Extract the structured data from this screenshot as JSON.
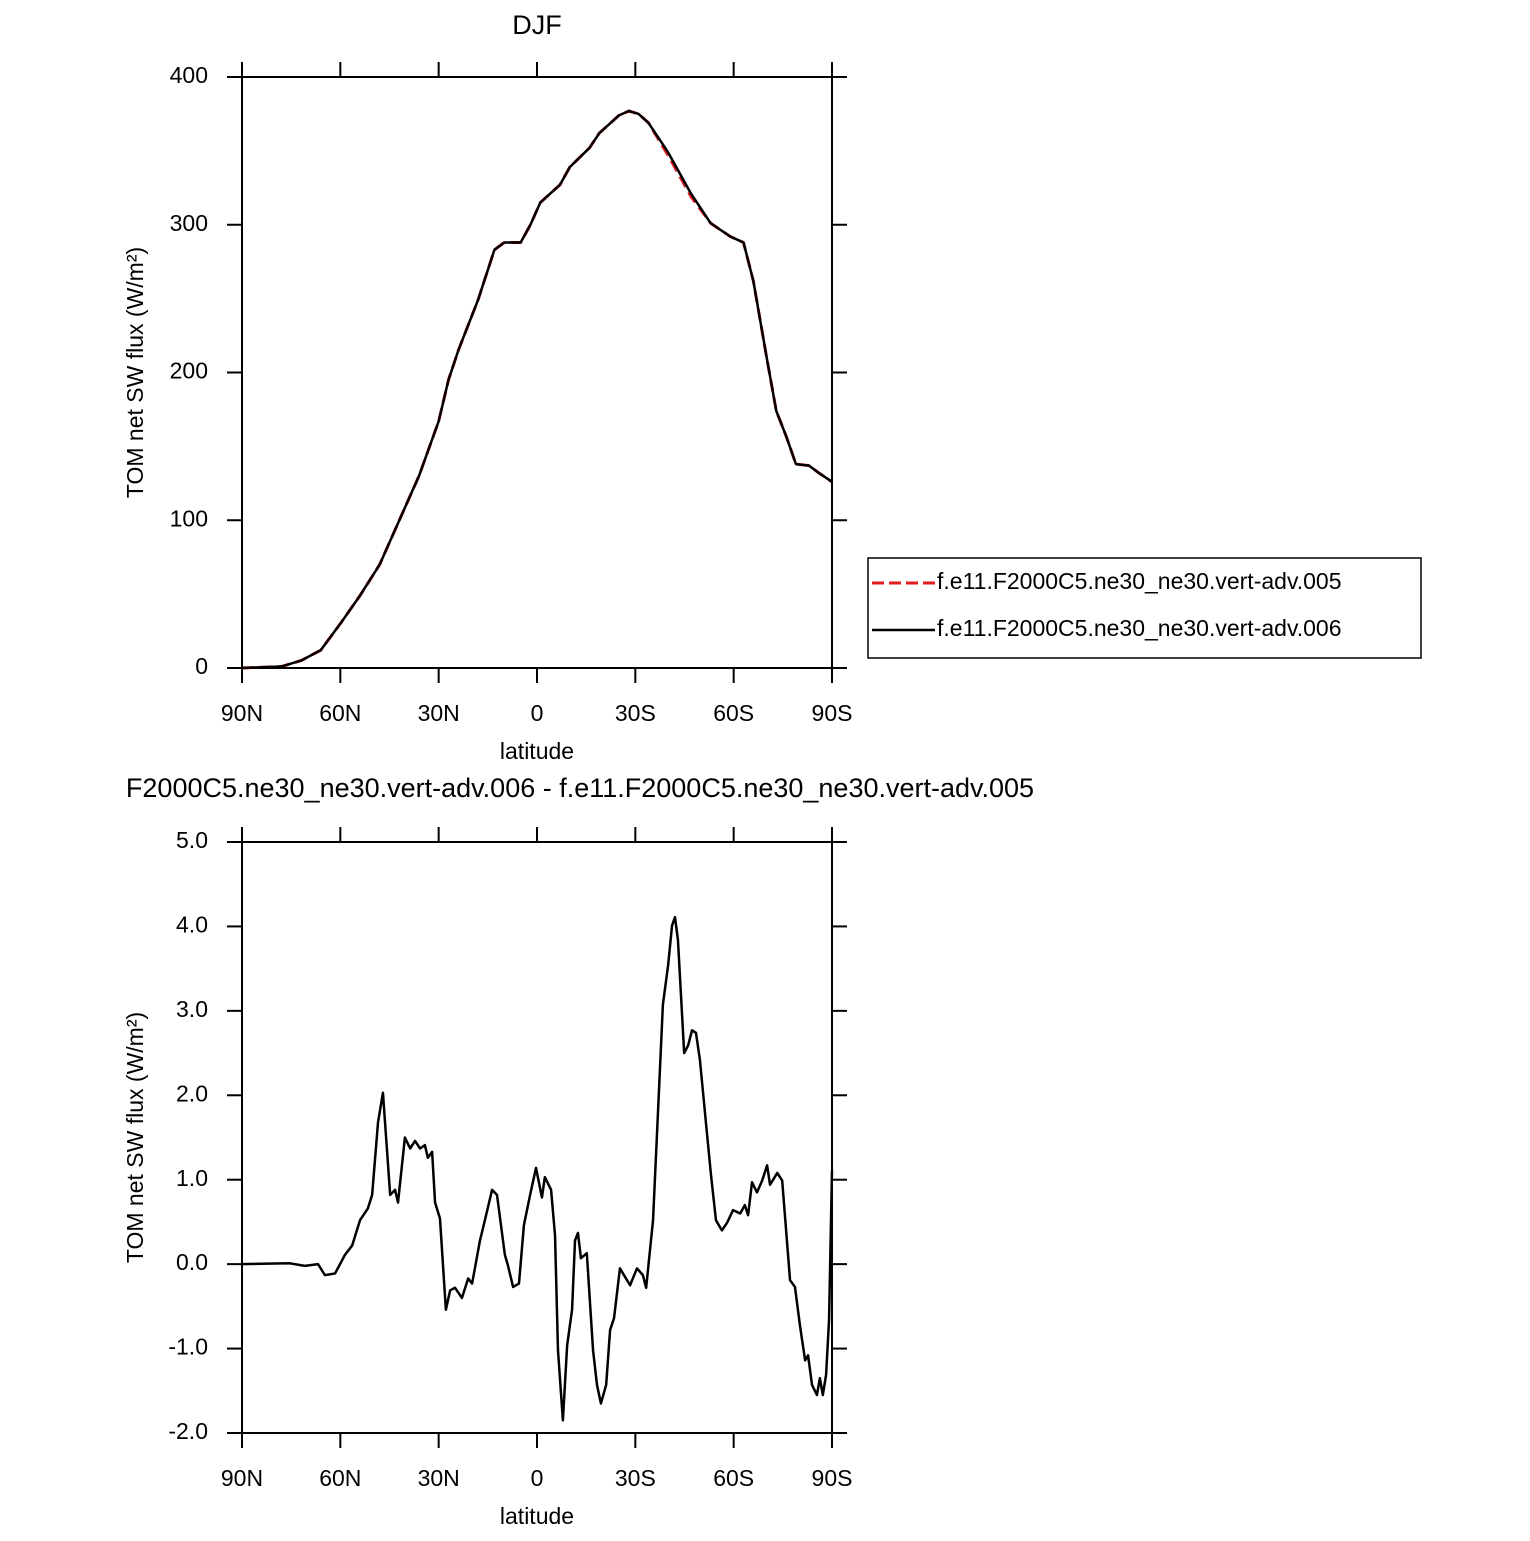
{
  "chart_data": [
    {
      "type": "line",
      "title": "DJF",
      "xlabel": "latitude",
      "ylabel": "TOM net SW flux (W/m²)",
      "x": [
        90,
        78,
        72,
        66,
        60,
        54,
        48,
        42,
        36,
        30,
        27,
        24,
        18,
        13,
        10,
        5,
        2,
        -1,
        -7,
        -10,
        -16,
        -19,
        -25,
        -28,
        -31,
        -34,
        -40,
        -47,
        -53,
        -59,
        -63,
        -66,
        -70,
        -73,
        -76,
        -79,
        -83,
        -86,
        -90
      ],
      "series": [
        {
          "name": "f.e11.F2000C5.ne30_ne30.vert-adv.005",
          "color": "#e41a1c",
          "linestyle": "dashed",
          "values": [
            0,
            1,
            5,
            12,
            30,
            49,
            70,
            100,
            130,
            167,
            195,
            215,
            249,
            283,
            288,
            288,
            300,
            315,
            327,
            339,
            352,
            362,
            374,
            377,
            375,
            369,
            347,
            319,
            301,
            292,
            288,
            262,
            211,
            174,
            157,
            138,
            137,
            132,
            126
          ]
        },
        {
          "name": "f.e11.F2000C5.ne30_ne30.vert-adv.006",
          "color": "#000000",
          "linestyle": "solid",
          "values": [
            0,
            1,
            5,
            12,
            30,
            49,
            70,
            100,
            130,
            167,
            195,
            215,
            249,
            283,
            288,
            288,
            300,
            315,
            327,
            339,
            352,
            362,
            374,
            377,
            375,
            369,
            349,
            321,
            301,
            292,
            288,
            262,
            211,
            174,
            157,
            138,
            137,
            132,
            126
          ]
        }
      ],
      "xlim": [
        90,
        -90
      ],
      "xticks": [
        {
          "value": 90,
          "label": "90N"
        },
        {
          "value": 60,
          "label": "60N"
        },
        {
          "value": 30,
          "label": "30N"
        },
        0,
        {
          "value": -30,
          "label": "30S"
        },
        {
          "value": -60,
          "label": "60S"
        },
        {
          "value": -90,
          "label": "90S"
        }
      ],
      "ylim": [
        0,
        400
      ],
      "yticks": [
        0,
        100,
        200,
        300,
        400
      ],
      "legend": "outside-right"
    },
    {
      "type": "line",
      "title": "F2000C5.ne30_ne30.vert-adv.006 - f.e11.F2000C5.ne30_ne30.vert-adv.005",
      "xlabel": "latitude",
      "ylabel": "TOM net SW flux (W/m²)",
      "x": [
        90,
        75.4,
        70.8,
        66.8,
        64.7,
        61.6,
        58.6,
        56.4,
        54,
        51.6,
        50.3,
        48.5,
        47,
        44.8,
        43.3,
        42.4,
        40.3,
        38.7,
        37.2,
        35.7,
        34.2,
        33.3,
        32,
        31.1,
        29.6,
        27.8,
        26.5,
        25,
        22.9,
        21,
        19.8,
        17.4,
        15.9,
        13.7,
        12.2,
        9.8,
        8.9,
        7.3,
        5.5,
        4,
        2.1,
        0.3,
        -1.5,
        -2.4,
        -4.3,
        -5.5,
        -6.4,
        -7.9,
        -9.2,
        -10.7,
        -11.6,
        -12.5,
        -13.4,
        -15.2,
        -17.1,
        -18.3,
        -19.5,
        -21.1,
        -22.3,
        -23.5,
        -25.3,
        -28.4,
        -30.5,
        -32.3,
        -33.3,
        -35.4,
        -37.5,
        -38.4,
        -40,
        -41.2,
        -42.1,
        -43,
        -44.9,
        -46.1,
        -47.3,
        -48.5,
        -49.7,
        -51.9,
        -53.1,
        -54.6,
        -56.4,
        -58,
        -59.8,
        -62,
        -63.4,
        -64.4,
        -65.6,
        -67.1,
        -68.7,
        -70.2,
        -71.1,
        -73.3,
        -74.8,
        -77.2,
        -78.7,
        -80.2,
        -81.8,
        -82.7,
        -83.9,
        -85.4,
        -86.3,
        -87.2,
        -88.2,
        -89.1,
        -90
      ],
      "values": [
        0,
        0.01,
        -0.02,
        0,
        -0.13,
        -0.11,
        0.11,
        0.22,
        0.52,
        0.66,
        0.82,
        1.68,
        2.03,
        0.82,
        0.88,
        0.73,
        1.5,
        1.37,
        1.46,
        1.37,
        1.41,
        1.26,
        1.33,
        0.73,
        0.54,
        -0.54,
        -0.31,
        -0.28,
        -0.4,
        -0.17,
        -0.23,
        0.28,
        0.52,
        0.88,
        0.82,
        0.11,
        -0.01,
        -0.27,
        -0.23,
        0.46,
        0.82,
        1.14,
        0.79,
        1.03,
        0.88,
        0.34,
        -1.02,
        -1.85,
        -0.96,
        -0.54,
        0.28,
        0.37,
        0.07,
        0.13,
        -1.02,
        -1.43,
        -1.65,
        -1.43,
        -0.78,
        -0.64,
        -0.05,
        -0.25,
        -0.05,
        -0.13,
        -0.28,
        0.52,
        2.3,
        3.07,
        3.54,
        4.01,
        4.11,
        3.84,
        2.5,
        2.59,
        2.77,
        2.74,
        2.42,
        1.53,
        1.05,
        0.52,
        0.4,
        0.49,
        0.64,
        0.6,
        0.7,
        0.58,
        0.97,
        0.85,
        0.99,
        1.17,
        0.94,
        1.08,
        0.99,
        -0.19,
        -0.27,
        -0.72,
        -1.14,
        -1.08,
        -1.43,
        -1.55,
        -1.35,
        -1.55,
        -1.31,
        -0.66,
        1.11
      ],
      "color": "#000000",
      "xlim": [
        90,
        -90
      ],
      "xticks": [
        {
          "value": 90,
          "label": "90N"
        },
        {
          "value": 60,
          "label": "60N"
        },
        {
          "value": 30,
          "label": "30N"
        },
        0,
        {
          "value": -30,
          "label": "30S"
        },
        {
          "value": -60,
          "label": "60S"
        },
        {
          "value": -90,
          "label": "90S"
        }
      ],
      "ylim": [
        -2,
        5
      ],
      "yticks": [
        {
          "value": -2,
          "label": "-2.0"
        },
        {
          "value": -1,
          "label": "-1.0"
        },
        {
          "value": 0,
          "label": "0.0"
        },
        {
          "value": 1,
          "label": "1.0"
        },
        {
          "value": 2,
          "label": "2.0"
        },
        {
          "value": 3,
          "label": "3.0"
        },
        {
          "value": 4,
          "label": "4.0"
        },
        {
          "value": 5,
          "label": "5.0"
        }
      ]
    }
  ]
}
